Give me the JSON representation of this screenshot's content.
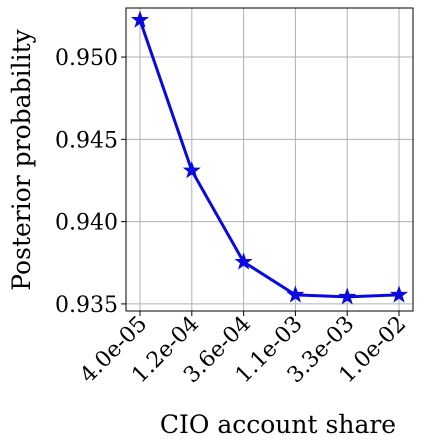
{
  "chart_data": {
    "type": "line",
    "x_label": "CIO account share",
    "y_label": "Posterior probability",
    "categories": [
      "4.0e-05",
      "1.2e-04",
      "3.6e-04",
      "1.1e-03",
      "3.3e-03",
      "1.0e-02"
    ],
    "series": [
      {
        "name": "Posterior probability",
        "color": "#0a0adc",
        "values": [
          0.95225,
          0.9431,
          0.93755,
          0.93555,
          0.93543,
          0.93555
        ]
      }
    ],
    "ylim": [
      0.93457,
      0.95298
    ],
    "yticks": [
      0.935,
      {
        "value": 0.94,
        "label": "0.940"
      },
      0.945,
      {
        "value": 0.95,
        "label": "0.950"
      }
    ],
    "grid": true
  }
}
